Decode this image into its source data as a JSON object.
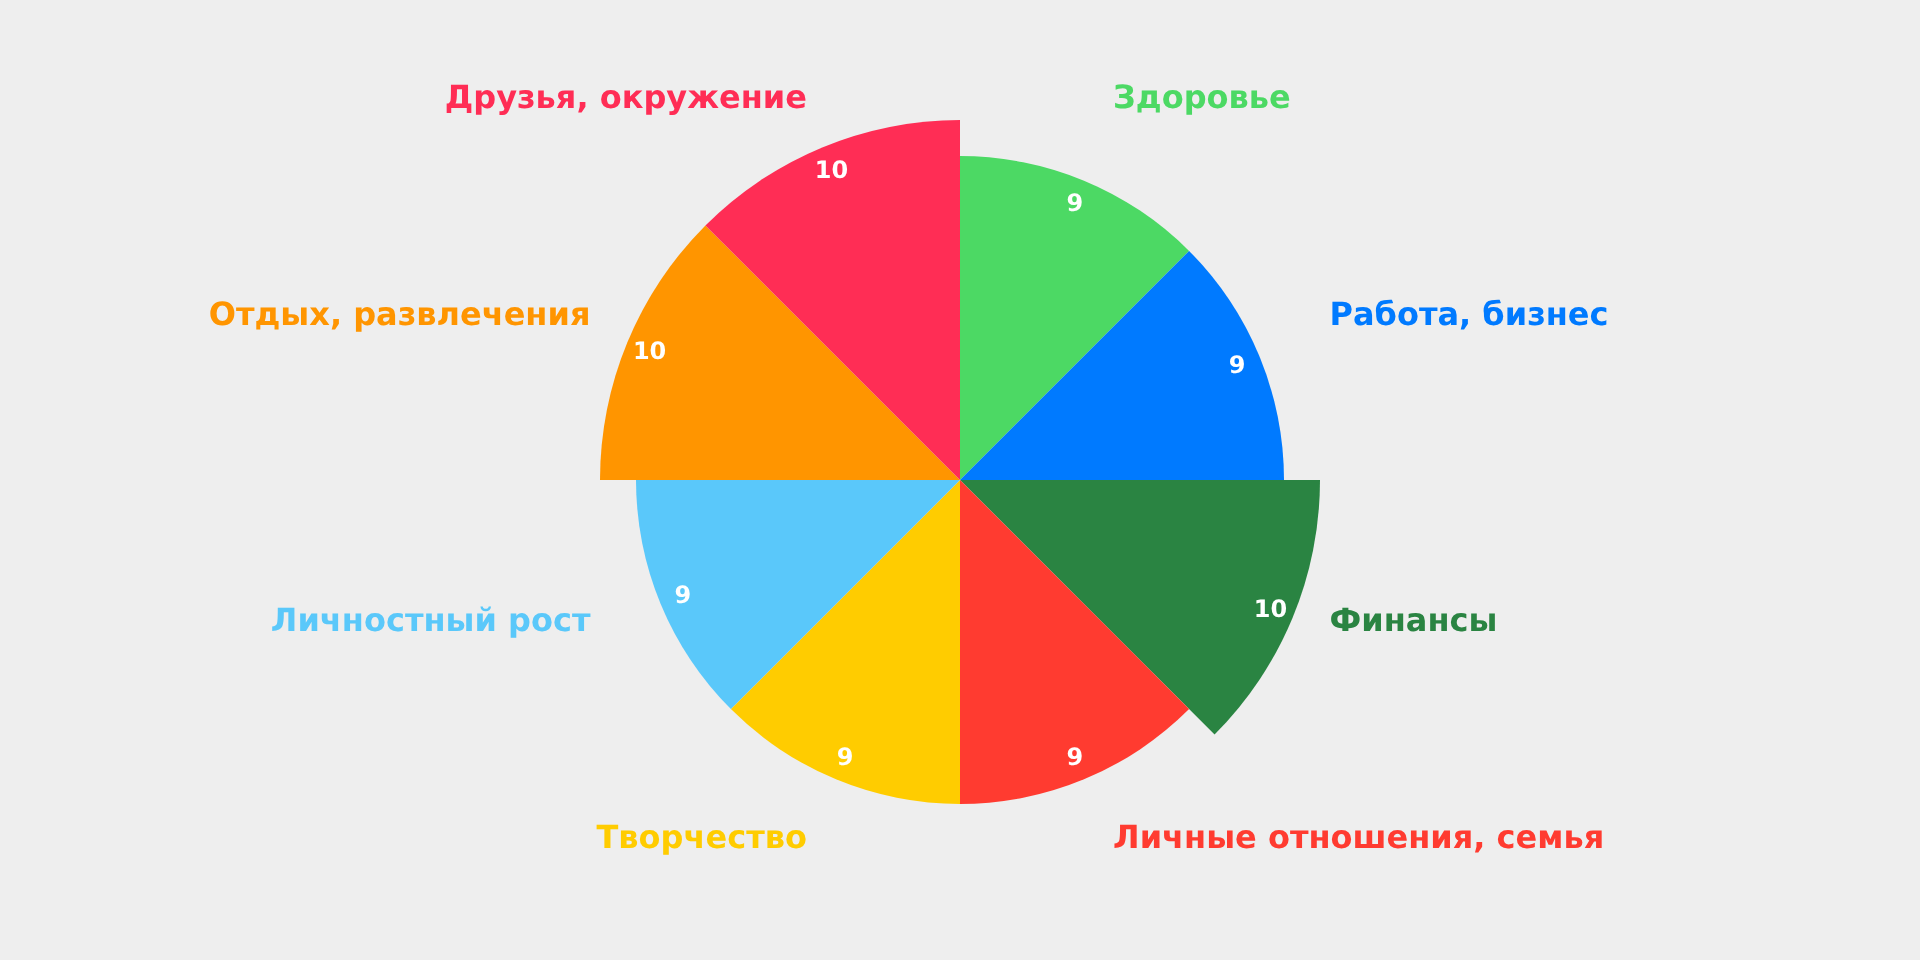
{
  "chart_data": {
    "type": "other",
    "categories": [
      "Здоровье",
      "Работа, бизнес",
      "Финансы",
      "Личные отношения, семья",
      "Творчество",
      "Личностный рост",
      "Отдых, развлечения",
      "Друзья, окружение"
    ],
    "values": [
      9,
      9,
      10,
      9,
      9,
      9,
      10,
      10
    ],
    "colors": [
      "#4cd964",
      "#007aff",
      "#2a8442",
      "#ff3b30",
      "#ffcc00",
      "#5ac8fa",
      "#ff9500",
      "#ff2d55"
    ],
    "data_labels": true
  }
}
